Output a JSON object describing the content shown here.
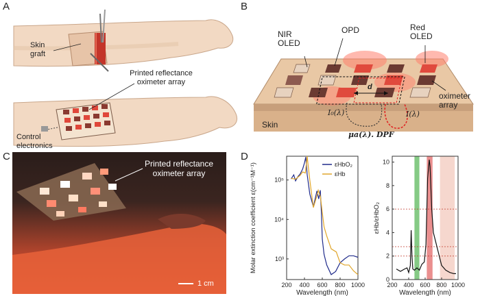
{
  "panels": {
    "a": {
      "letter": "A",
      "skin_graft": "Skin graft",
      "printed_array": "Printed reflectance oximeter array",
      "control": "Control electronics"
    },
    "b": {
      "letter": "B",
      "nir_oled": "NIR OLED",
      "opd": "OPD",
      "red_oled": "Red OLED",
      "oximeter_array": "oximeter array",
      "skin": "Skin",
      "i0": "I₀(λ)",
      "i": "I(λ)",
      "d": "d",
      "formula": "μa(λ). DPF"
    },
    "c": {
      "letter": "C",
      "array_label": "Printed reflectance oximeter array",
      "scale_bar": "1 cm"
    },
    "d": {
      "letter": "D"
    }
  },
  "chart_data": [
    {
      "type": "line",
      "title": "",
      "xlabel": "Wavelength (nm)",
      "ylabel": "Molar extinction coefficient ε(cm⁻¹M⁻¹)",
      "yscale": "log",
      "xlim": [
        200,
        1000
      ],
      "ylim": [
        300,
        400000
      ],
      "xticks": [
        "200",
        "400",
        "600",
        "800",
        "1000"
      ],
      "yticks": [
        "10³",
        "10⁴",
        "10⁵"
      ],
      "legend": [
        "εHbO₂",
        "εHb"
      ],
      "series": [
        {
          "name": "εHbO₂",
          "color": "#1f2a8a",
          "x": [
            250,
            280,
            300,
            330,
            350,
            380,
            400,
            415,
            430,
            460,
            500,
            540,
            560,
            578,
            590,
            600,
            620,
            650,
            700,
            750,
            800,
            850,
            900,
            950,
            1000
          ],
          "y": [
            106000,
            135000,
            95000,
            125000,
            140000,
            190000,
            270000,
            380000,
            140000,
            44000,
            21000,
            53000,
            33000,
            55000,
            15000,
            3200,
            1300,
            700,
            400,
            480,
            800,
            1000,
            1200,
            1200,
            1100
          ]
        },
        {
          "name": "εHb",
          "color": "#e0a52a",
          "x": [
            250,
            300,
            350,
            380,
            410,
            430,
            460,
            500,
            540,
            555,
            580,
            600,
            620,
            650,
            700,
            757,
            800,
            850,
            900,
            950,
            1000
          ],
          "y": [
            110000,
            105000,
            130000,
            160000,
            150000,
            500000,
            100000,
            20000,
            40000,
            55000,
            37000,
            15000,
            6500,
            3800,
            1800,
            1500,
            800,
            700,
            700,
            500,
            400
          ]
        }
      ]
    },
    {
      "type": "line",
      "title": "",
      "xlabel": "Wavelength (nm)",
      "ylabel": "εHb/εHbO₂",
      "xlim": [
        200,
        1000
      ],
      "ylim": [
        0,
        10.5
      ],
      "xticks": [
        "200",
        "400",
        "600",
        "800",
        "1000"
      ],
      "yticks": [
        "0",
        "2",
        "4",
        "6",
        "8",
        "10"
      ],
      "bands": [
        {
          "from": 470,
          "to": 530,
          "color": "#5cb85c"
        },
        {
          "from": 620,
          "to": 690,
          "color": "#e36a6a"
        },
        {
          "from": 780,
          "to": 960,
          "color": "#f3c9bd"
        }
      ],
      "reference_lines": [
        2,
        2.8,
        6
      ],
      "series": [
        {
          "name": "ratio",
          "color": "#111111",
          "x": [
            250,
            300,
            350,
            380,
            400,
            420,
            430,
            440,
            450,
            470,
            500,
            530,
            560,
            590,
            610,
            630,
            650,
            660,
            680,
            700,
            750,
            800,
            850,
            900,
            950,
            975
          ],
          "y": [
            0.9,
            0.7,
            0.9,
            1.0,
            0.6,
            1.2,
            4.2,
            2.0,
            0.9,
            0.8,
            1.0,
            0.8,
            1.3,
            1.5,
            3.0,
            8.6,
            10.2,
            9.6,
            6.0,
            4.0,
            2.6,
            1.2,
            0.8,
            0.6,
            0.5,
            0.5
          ]
        }
      ]
    }
  ]
}
